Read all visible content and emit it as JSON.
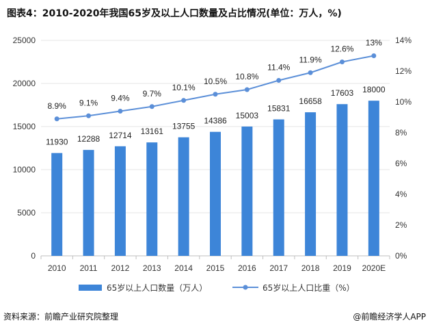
{
  "title": "图表4：2010-2020年我国65岁及以上人口数量及占比情况(单位：万人，%)",
  "source": "资料来源：前瞻产业研究院整理",
  "brand": "@前瞻经济学人APP",
  "colors": {
    "bar": "#3d85d8",
    "line": "#5b8fd8",
    "grid": "#e6e6e6"
  },
  "chart_data": {
    "type": "bar+line",
    "categories": [
      "2010",
      "2011",
      "2012",
      "2013",
      "2014",
      "2015",
      "2016",
      "2017",
      "2018",
      "2019",
      "2020E"
    ],
    "series": [
      {
        "name": "65岁以上人口数量（万人）",
        "type": "bar",
        "axis": "left",
        "values": [
          11930,
          12288,
          12714,
          13161,
          13755,
          14386,
          15003,
          15831,
          16658,
          17603,
          18000
        ],
        "labels": [
          "11930",
          "12288",
          "12714",
          "13161",
          "13755",
          "14386",
          "15003",
          "15831",
          "16658",
          "17603",
          "18000"
        ]
      },
      {
        "name": "65岁以上人口比重（%）",
        "type": "line",
        "axis": "right",
        "values": [
          8.9,
          9.1,
          9.4,
          9.7,
          10.1,
          10.5,
          10.8,
          11.4,
          11.9,
          12.6,
          13
        ],
        "labels": [
          "8.9%",
          "9.1%",
          "9.4%",
          "9.7%",
          "10.1%",
          "10.5%",
          "10.8%",
          "11.4%",
          "11.9%",
          "12.6%",
          "13%"
        ]
      }
    ],
    "y_left": {
      "min": 0,
      "max": 25000,
      "ticks": [
        "0",
        "5000",
        "10000",
        "15000",
        "20000",
        "25000"
      ]
    },
    "y_right": {
      "min": 0,
      "max": 14,
      "ticks": [
        "0%",
        "2%",
        "4%",
        "6%",
        "8%",
        "10%",
        "12%",
        "14%"
      ]
    },
    "grid": true,
    "legend": "bottom"
  }
}
